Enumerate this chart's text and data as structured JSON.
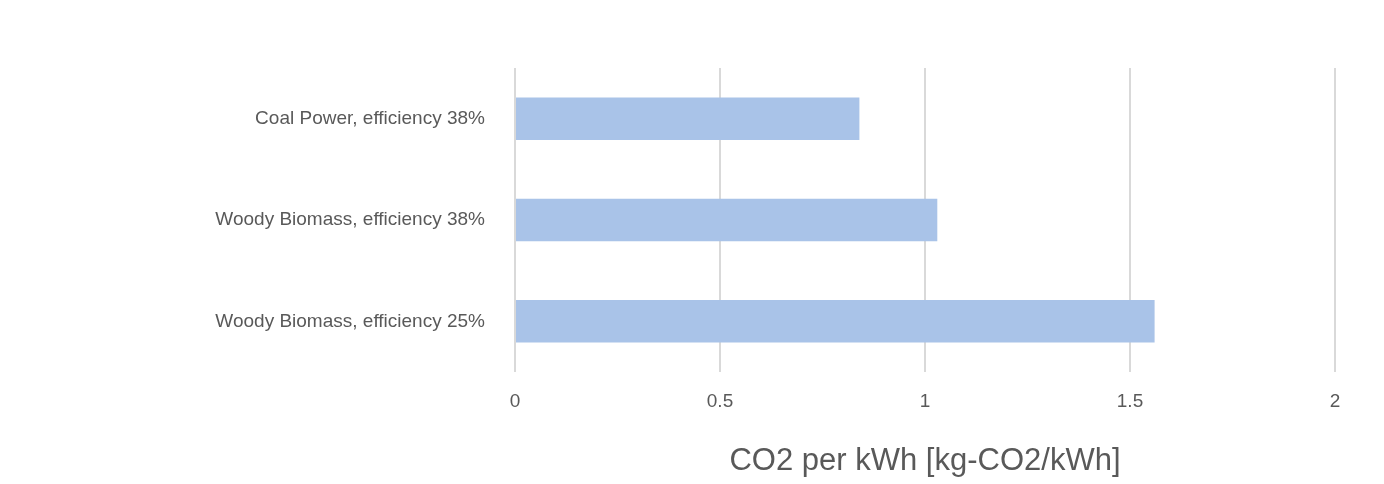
{
  "chart_data": {
    "type": "bar",
    "orientation": "horizontal",
    "xlabel": "CO2 per kWh [kg-CO2/kWh]",
    "categories": [
      "Coal Power, efficiency 38%",
      "Woody Biomass, efficiency 38%",
      "Woody Biomass, efficiency 25%"
    ],
    "values": [
      0.84,
      1.03,
      1.56
    ],
    "color": "#a9c3e8",
    "xlim": [
      0,
      2
    ],
    "xticks": [
      0,
      0.5,
      1,
      1.5,
      2
    ],
    "grid": "x",
    "legend": false
  }
}
